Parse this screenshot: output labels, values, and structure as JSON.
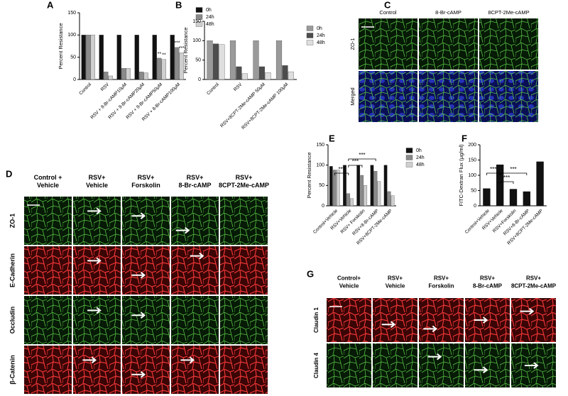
{
  "chart_data": [
    {
      "type": "bar",
      "title": "A",
      "y_label": "Percent Resistance",
      "categories": [
        "Control",
        "RSV",
        "RSV + 8-Br-cAMP10μM",
        "RSV + 8-Br-cAMP20μM",
        "RSV + 8-Br-cAMP50μM",
        "RSV + 8-Br-cAMP100μM"
      ],
      "series": [
        {
          "name": "0h",
          "color": "#111111",
          "values": [
            100,
            100,
            100,
            100,
            100,
            100
          ]
        },
        {
          "name": "24h",
          "color": "#8a8a8a",
          "values": [
            100,
            17,
            25,
            17,
            48,
            72
          ]
        },
        {
          "name": "48h",
          "color": "#cfcfcf",
          "values": [
            100,
            8,
            25,
            15,
            45,
            60
          ]
        }
      ],
      "ylim": [
        0,
        150
      ],
      "yticks": [
        0,
        50,
        100,
        150
      ],
      "annotations": [
        "**",
        "**",
        "***",
        "***"
      ]
    },
    {
      "type": "bar",
      "title": "B",
      "y_label": "Percent Resistance",
      "categories": [
        "Control",
        "RSV",
        "RSV+8CPT-2Me-cAMP 50μM",
        "RSV+8CPT-2Me-cAMP 100μM"
      ],
      "series": [
        {
          "name": "0h",
          "color": "#9a9a9a",
          "values": [
            100,
            100,
            100,
            100
          ]
        },
        {
          "name": "24h",
          "color": "#4d4d4d",
          "values": [
            92,
            33,
            33,
            36
          ]
        },
        {
          "name": "48h",
          "color": "#dedede",
          "values": [
            90,
            15,
            18,
            20
          ]
        }
      ],
      "ylim": [
        0,
        150
      ],
      "yticks": [
        0,
        50,
        100,
        150
      ]
    },
    {
      "type": "bar",
      "title": "E",
      "y_label": "Percent Resistance",
      "categories": [
        "Control+Vehicle",
        "RSV+Vehicle",
        "RSV+ Forskolin",
        "RSV+8-Br-cAMP",
        "RSV+8CPT-2Me-cAMP"
      ],
      "series": [
        {
          "name": "0h",
          "color": "#111111",
          "values": [
            97,
            100,
            100,
            100,
            100
          ]
        },
        {
          "name": "24h",
          "color": "#8a8a8a",
          "values": [
            88,
            30,
            75,
            85,
            35
          ]
        },
        {
          "name": "48h",
          "color": "#cfcfcf",
          "values": [
            88,
            18,
            50,
            60,
            25
          ]
        }
      ],
      "ylim": [
        0,
        150
      ],
      "yticks": [
        0,
        50,
        100,
        150
      ],
      "annotations": [
        "***",
        "***",
        "***"
      ]
    },
    {
      "type": "bar",
      "title": "F",
      "y_label": "FITC-Dextran Flux (μg/ml)",
      "categories": [
        "Control+Vehicle",
        "RSV+Vehicle",
        "RSV+Forskolin",
        "RSV+8-Br-cAMP",
        "RSV+8CPT-2Me-cAMP"
      ],
      "values": [
        57,
        135,
        55,
        47,
        145
      ],
      "color": "#111111",
      "ylim": [
        0,
        200
      ],
      "yticks": [
        0,
        50,
        100,
        150,
        200
      ],
      "annotations": [
        "***",
        "***",
        "***"
      ]
    }
  ],
  "panels": [
    {
      "letter": "C",
      "columns": [
        [
          "Control"
        ],
        [
          "8-Br-cAMP"
        ],
        [
          "8CPT-2Me-cAMP"
        ]
      ],
      "rows": [
        "ZO-1",
        "Merged"
      ]
    },
    {
      "letter": "D",
      "columns": [
        [
          "Control +",
          "Vehicle"
        ],
        [
          "RSV+",
          "Vehicle"
        ],
        [
          "RSV+",
          "Forskolin"
        ],
        [
          "RSV+",
          "8-Br-cAMP"
        ],
        [
          "RSV+",
          "8CPT-2Me-cAMP"
        ]
      ],
      "rows": [
        "ZO-1",
        "E-Cadherin",
        "Occludin",
        "β-Catenin"
      ]
    },
    {
      "letter": "G",
      "columns": [
        [
          "Control+",
          "Vehicle"
        ],
        [
          "RSV+",
          "Vehicle"
        ],
        [
          "RSV+",
          "Forskolin"
        ],
        [
          "RSV+",
          "8-Br-cAMP"
        ],
        [
          "RSV+",
          "8CPT-2Me-cAMP"
        ]
      ],
      "rows": [
        "Claudin 1",
        "Claudin 4"
      ]
    }
  ]
}
